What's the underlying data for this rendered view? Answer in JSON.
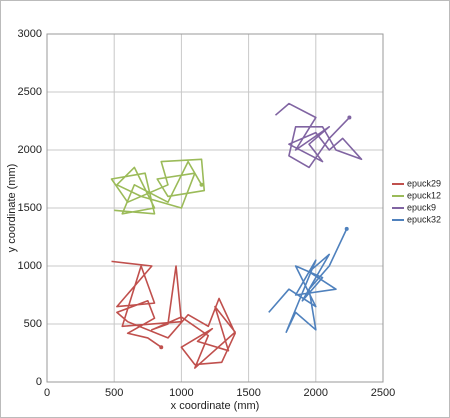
{
  "chart_data": {
    "type": "line",
    "grid": true,
    "legend": "right",
    "x_label": "x coordinate (mm)",
    "y_label": "y coordinate (mm)",
    "xlim": [
      0,
      2500
    ],
    "xticks": [
      0,
      500,
      1000,
      1500,
      2000,
      2500
    ],
    "ylim": [
      0,
      3000
    ],
    "yticks": [
      0,
      500,
      1000,
      1500,
      2000,
      2500,
      3000
    ],
    "series": [
      {
        "name": "epuck29",
        "color": "#c0504d",
        "x": [
          480,
          780,
          520,
          800,
          700,
          560,
          1000,
          960,
          900,
          780,
          1000,
          1200,
          1100,
          1400,
          1250,
          1350,
          1120,
          1230,
          1000,
          1100,
          1300,
          1400,
          1280,
          1200,
          1050,
          900,
          600,
          520,
          750,
          800,
          600,
          750,
          850
        ],
        "values": [
          1040,
          1000,
          650,
          680,
          1000,
          480,
          520,
          1000,
          500,
          450,
          560,
          400,
          120,
          430,
          650,
          270,
          350,
          460,
          300,
          150,
          170,
          420,
          720,
          480,
          580,
          380,
          520,
          600,
          700,
          550,
          420,
          380,
          300
        ]
      },
      {
        "name": "epuck12",
        "color": "#9bbb59",
        "x": [
          500,
          800,
          730,
          480,
          600,
          900,
          850,
          1150,
          1170,
          900,
          820,
          1100,
          1000,
          700,
          520,
          650,
          800,
          560,
          650,
          900,
          1050,
          1150
        ],
        "values": [
          1480,
          1450,
          1800,
          1750,
          1550,
          1700,
          1900,
          1920,
          1650,
          1600,
          1750,
          1800,
          1500,
          1600,
          1700,
          1850,
          1500,
          1450,
          1700,
          1550,
          1900,
          1700
        ]
      },
      {
        "name": "epuck9",
        "color": "#8064a2",
        "x": [
          1700,
          1800,
          2000,
          1850,
          2100,
          1950,
          2050,
          1800,
          2000,
          2100,
          2200,
          2340,
          2150,
          2050,
          1850,
          1800,
          1950,
          2100,
          2250
        ],
        "values": [
          2300,
          2400,
          2280,
          2000,
          2200,
          2050,
          1900,
          2050,
          2150,
          2000,
          2100,
          1920,
          2000,
          2200,
          2200,
          1950,
          1850,
          2100,
          2280
        ]
      },
      {
        "name": "epuck32",
        "color": "#4f81bd",
        "x": [
          1650,
          1800,
          2000,
          1850,
          2050,
          1900,
          2100,
          1950,
          2150,
          1850,
          2000,
          1780,
          1850,
          2000,
          1950,
          2100,
          2230
        ],
        "values": [
          600,
          800,
          650,
          1000,
          900,
          700,
          1100,
          950,
          800,
          750,
          1050,
          430,
          600,
          450,
          800,
          1000,
          1320
        ]
      }
    ]
  }
}
